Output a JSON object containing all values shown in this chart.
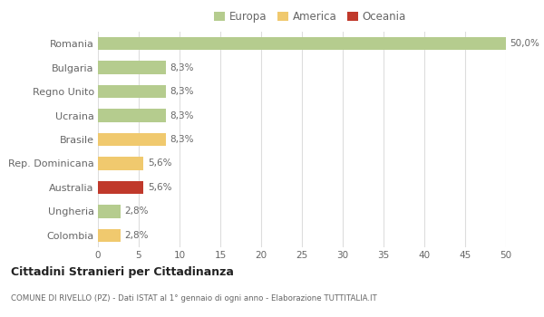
{
  "categories": [
    "Colombia",
    "Ungheria",
    "Australia",
    "Rep. Dominicana",
    "Brasile",
    "Ucraina",
    "Regno Unito",
    "Bulgaria",
    "Romania"
  ],
  "values": [
    2.8,
    2.8,
    5.6,
    5.6,
    8.3,
    8.3,
    8.3,
    8.3,
    50.0
  ],
  "colors": [
    "#f0c96e",
    "#b5cc8e",
    "#c0392b",
    "#f0c96e",
    "#f0c96e",
    "#b5cc8e",
    "#b5cc8e",
    "#b5cc8e",
    "#b5cc8e"
  ],
  "labels": [
    "2,8%",
    "2,8%",
    "5,6%",
    "5,6%",
    "8,3%",
    "8,3%",
    "8,3%",
    "8,3%",
    "50,0%"
  ],
  "xlim": [
    0,
    50
  ],
  "xticks": [
    0,
    5,
    10,
    15,
    20,
    25,
    30,
    35,
    40,
    45,
    50
  ],
  "title": "Cittadini Stranieri per Cittadinanza",
  "subtitle": "COMUNE DI RIVELLO (PZ) - Dati ISTAT al 1° gennaio di ogni anno - Elaborazione TUTTITALIA.IT",
  "legend_labels": [
    "Europa",
    "America",
    "Oceania"
  ],
  "legend_colors": [
    "#b5cc8e",
    "#f0c96e",
    "#c0392b"
  ],
  "bg_color": "#ffffff",
  "grid_color": "#dddddd",
  "bar_height": 0.55
}
